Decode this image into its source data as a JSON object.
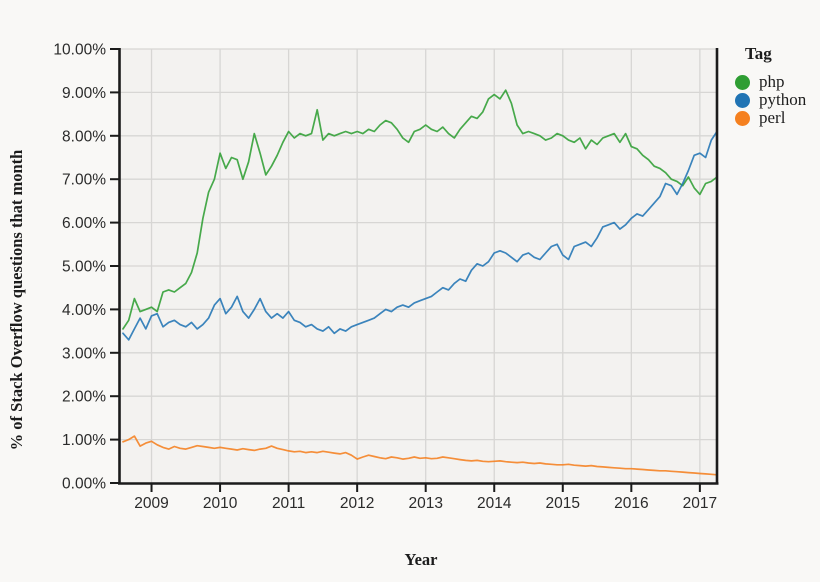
{
  "figure": {
    "ylabel": "% of Stack Overflow questions that month",
    "xlabel": "Year",
    "legend_title": "Tag"
  },
  "chart_data": {
    "type": "line",
    "title": "",
    "xlabel": "Year",
    "ylabel": "% of Stack Overflow questions that month",
    "x_unit": "month",
    "x_start_month": "2008-08",
    "x_end_month": "2017-04",
    "xlim": [
      2008.54,
      2017.25
    ],
    "ylim": [
      0,
      10
    ],
    "grid": true,
    "legend": {
      "title": "Tag",
      "position": "right"
    },
    "x_ticks": [
      {
        "v": 2009,
        "label": "2009"
      },
      {
        "v": 2010,
        "label": "2010"
      },
      {
        "v": 2011,
        "label": "2011"
      },
      {
        "v": 2012,
        "label": "2012"
      },
      {
        "v": 2013,
        "label": "2013"
      },
      {
        "v": 2014,
        "label": "2014"
      },
      {
        "v": 2015,
        "label": "2015"
      },
      {
        "v": 2016,
        "label": "2016"
      },
      {
        "v": 2017,
        "label": "2017"
      }
    ],
    "y_ticks": [
      {
        "v": 0,
        "label": "0.00%"
      },
      {
        "v": 1,
        "label": "1.00%"
      },
      {
        "v": 2,
        "label": "2.00%"
      },
      {
        "v": 3,
        "label": "3.00%"
      },
      {
        "v": 4,
        "label": "4.00%"
      },
      {
        "v": 5,
        "label": "5.00%"
      },
      {
        "v": 6,
        "label": "6.00%"
      },
      {
        "v": 7,
        "label": "7.00%"
      },
      {
        "v": 8,
        "label": "8.00%"
      },
      {
        "v": 9,
        "label": "9.00%"
      },
      {
        "v": 10,
        "label": "10.00%"
      }
    ],
    "series": [
      {
        "name": "php",
        "color": "#2f9e33",
        "values": [
          3.55,
          3.75,
          4.25,
          3.95,
          4.0,
          4.05,
          3.95,
          4.4,
          4.45,
          4.4,
          4.5,
          4.6,
          4.85,
          5.3,
          6.1,
          6.7,
          7.0,
          7.6,
          7.25,
          7.5,
          7.45,
          7.0,
          7.4,
          8.05,
          7.6,
          7.1,
          7.3,
          7.55,
          7.85,
          8.1,
          7.95,
          8.05,
          8.0,
          8.05,
          8.6,
          7.9,
          8.05,
          8.0,
          8.05,
          8.1,
          8.05,
          8.1,
          8.05,
          8.15,
          8.1,
          8.25,
          8.35,
          8.3,
          8.15,
          7.95,
          7.85,
          8.1,
          8.15,
          8.25,
          8.15,
          8.1,
          8.2,
          8.05,
          7.95,
          8.15,
          8.3,
          8.45,
          8.4,
          8.55,
          8.85,
          8.95,
          8.85,
          9.05,
          8.75,
          8.25,
          8.05,
          8.1,
          8.05,
          8.0,
          7.9,
          7.95,
          8.05,
          8.0,
          7.9,
          7.85,
          7.95,
          7.7,
          7.9,
          7.8,
          7.95,
          8.0,
          8.05,
          7.85,
          8.05,
          7.75,
          7.7,
          7.55,
          7.45,
          7.3,
          7.25,
          7.15,
          7.0,
          6.95,
          6.85,
          7.05,
          6.8,
          6.65,
          6.9,
          6.95,
          7.05
        ]
      },
      {
        "name": "python",
        "color": "#2174b4",
        "values": [
          3.45,
          3.3,
          3.55,
          3.8,
          3.55,
          3.85,
          3.9,
          3.6,
          3.7,
          3.75,
          3.65,
          3.6,
          3.7,
          3.55,
          3.65,
          3.8,
          4.1,
          4.25,
          3.9,
          4.05,
          4.3,
          3.95,
          3.8,
          4.0,
          4.25,
          3.95,
          3.8,
          3.9,
          3.8,
          3.95,
          3.75,
          3.7,
          3.6,
          3.65,
          3.55,
          3.5,
          3.6,
          3.45,
          3.55,
          3.5,
          3.6,
          3.65,
          3.7,
          3.75,
          3.8,
          3.9,
          4.0,
          3.95,
          4.05,
          4.1,
          4.05,
          4.15,
          4.2,
          4.25,
          4.3,
          4.4,
          4.5,
          4.45,
          4.6,
          4.7,
          4.65,
          4.9,
          5.05,
          5.0,
          5.1,
          5.3,
          5.35,
          5.3,
          5.2,
          5.1,
          5.25,
          5.3,
          5.2,
          5.15,
          5.3,
          5.45,
          5.5,
          5.25,
          5.15,
          5.45,
          5.5,
          5.55,
          5.45,
          5.65,
          5.9,
          5.95,
          6.0,
          5.85,
          5.95,
          6.1,
          6.2,
          6.15,
          6.3,
          6.45,
          6.6,
          6.9,
          6.85,
          6.65,
          6.9,
          7.2,
          7.55,
          7.6,
          7.5,
          7.9,
          8.1
        ]
      },
      {
        "name": "perl",
        "color": "#f5801f",
        "values": [
          0.95,
          1.0,
          1.08,
          0.85,
          0.92,
          0.96,
          0.88,
          0.82,
          0.78,
          0.84,
          0.8,
          0.78,
          0.82,
          0.86,
          0.84,
          0.82,
          0.8,
          0.82,
          0.8,
          0.78,
          0.76,
          0.79,
          0.77,
          0.75,
          0.78,
          0.8,
          0.85,
          0.8,
          0.77,
          0.74,
          0.72,
          0.73,
          0.7,
          0.72,
          0.7,
          0.73,
          0.71,
          0.69,
          0.67,
          0.7,
          0.64,
          0.55,
          0.6,
          0.64,
          0.61,
          0.58,
          0.56,
          0.6,
          0.58,
          0.55,
          0.57,
          0.6,
          0.57,
          0.58,
          0.56,
          0.57,
          0.6,
          0.58,
          0.56,
          0.54,
          0.52,
          0.51,
          0.52,
          0.5,
          0.49,
          0.5,
          0.51,
          0.49,
          0.48,
          0.47,
          0.48,
          0.46,
          0.45,
          0.46,
          0.44,
          0.43,
          0.42,
          0.42,
          0.43,
          0.41,
          0.4,
          0.39,
          0.4,
          0.38,
          0.37,
          0.36,
          0.35,
          0.34,
          0.33,
          0.33,
          0.32,
          0.31,
          0.3,
          0.29,
          0.28,
          0.28,
          0.27,
          0.26,
          0.25,
          0.24,
          0.23,
          0.22,
          0.21,
          0.2,
          0.19
        ]
      }
    ],
    "style": {
      "page_bg": "#f9f8f6",
      "plot_bg": "#f3f2f0",
      "grid_color": "#d7d6d4",
      "axis_color": "#1b1b1b",
      "tick_label_color": "#2b2b2b"
    }
  }
}
